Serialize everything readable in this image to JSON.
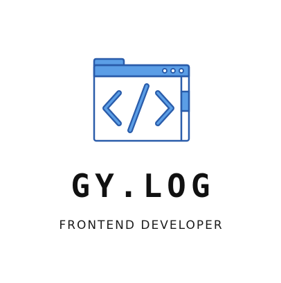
{
  "brand": {
    "name": "GY.LOG",
    "tagline": "FRONTEND DEVELOPER"
  },
  "emblem": {
    "icon": "code-window-icon",
    "colors": {
      "outline": "#2a5caa",
      "fill": "#5b9ee6",
      "background": "#ffffff"
    }
  }
}
